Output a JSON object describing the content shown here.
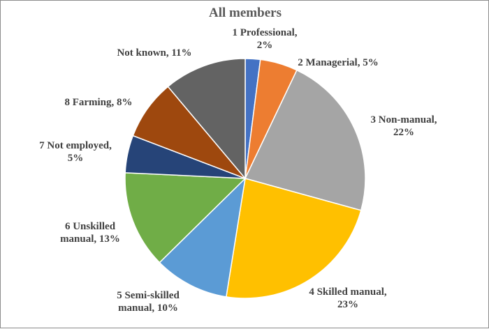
{
  "chart_data": {
    "type": "pie",
    "title": "All members",
    "slices": [
      {
        "name": "1 Professional",
        "value": 2,
        "label_lines": [
          "1 Professional,",
          "2%"
        ],
        "color": "#4472c4"
      },
      {
        "name": "2 Managerial",
        "value": 5,
        "label_lines": [
          "2 Managerial, 5%"
        ],
        "color": "#ed7d31"
      },
      {
        "name": "3 Non-manual",
        "value": 22,
        "label_lines": [
          "3 Non-manual,",
          "22%"
        ],
        "color": "#a5a5a5"
      },
      {
        "name": "4 Skilled manual",
        "value": 23,
        "label_lines": [
          "4 Skilled manual,",
          "23%"
        ],
        "color": "#ffc000"
      },
      {
        "name": "5 Semi-skilled manual",
        "value": 10,
        "label_lines": [
          "5 Semi-skilled",
          "manual, 10%"
        ],
        "color": "#5b9bd5"
      },
      {
        "name": "6 Unskilled manual",
        "value": 13,
        "label_lines": [
          "6 Unskilled",
          "manual, 13%"
        ],
        "color": "#70ad47"
      },
      {
        "name": "7 Not employed",
        "value": 5,
        "label_lines": [
          "7 Not employed,",
          "5%"
        ],
        "color": "#264478"
      },
      {
        "name": "8 Farming",
        "value": 8,
        "label_lines": [
          "8 Farming, 8%"
        ],
        "color": "#9e480e"
      },
      {
        "name": "Not known",
        "value": 11,
        "label_lines": [
          "Not known, 11%"
        ],
        "color": "#636363"
      }
    ]
  }
}
